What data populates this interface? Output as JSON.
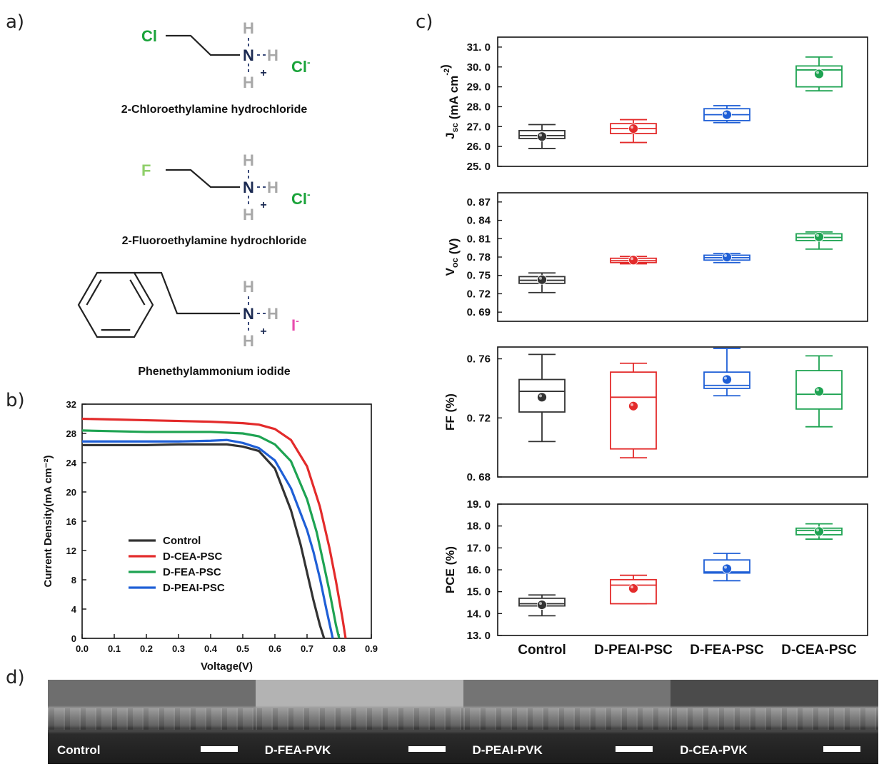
{
  "panel_labels": {
    "a": "a)",
    "b": "b)",
    "c": "c)",
    "d": "d)"
  },
  "molecules": [
    {
      "name": "2-Chloroethylamine hydrochloride",
      "substituent": "Cl",
      "counter_ion": "Cl",
      "ion_charge": "-",
      "substituent_color": "#1aa33a",
      "counter_color": "#1aa33a"
    },
    {
      "name": "2-Fluoroethylamine hydrochloride",
      "substituent": "F",
      "counter_ion": "Cl",
      "ion_charge": "-",
      "substituent_color": "#8fcf6a",
      "counter_color": "#1aa33a"
    },
    {
      "name": "Phenethylammonium iodide",
      "substituent": "",
      "counter_ion": "I",
      "ion_charge": "-",
      "substituent_color": "#222222",
      "counter_color": "#e84cae"
    }
  ],
  "atoms": {
    "N": "N",
    "H": "H",
    "plus": "+"
  },
  "colors": {
    "control": "#333333",
    "cea": "#e32b2b",
    "fea": "#1ea352",
    "peai": "#1f5fd6",
    "N": "#1b2a52",
    "H": "#a8a8a8"
  },
  "chart_data": [
    {
      "type": "line",
      "panel": "b",
      "xlabel": "Voltage(V)",
      "ylabel": "Current Density(mA cm⁻²)",
      "xlim": [
        0.0,
        0.9
      ],
      "ylim": [
        0,
        32
      ],
      "xticks": [
        "0.0",
        "0.1",
        "0.2",
        "0.3",
        "0.4",
        "0.5",
        "0.6",
        "0.7",
        "0.8",
        "0.9"
      ],
      "yticks": [
        "0",
        "4",
        "8",
        "12",
        "16",
        "20",
        "24",
        "28",
        "32"
      ],
      "legend_position": "center-left",
      "series": [
        {
          "name": "Control",
          "color": "#333333",
          "x": [
            0.0,
            0.1,
            0.2,
            0.3,
            0.4,
            0.45,
            0.5,
            0.55,
            0.6,
            0.65,
            0.68,
            0.7,
            0.72,
            0.74,
            0.753
          ],
          "y": [
            26.4,
            26.4,
            26.4,
            26.5,
            26.5,
            26.5,
            26.2,
            25.6,
            23.2,
            17.5,
            12.8,
            9.0,
            5.2,
            1.8,
            0
          ]
        },
        {
          "name": "D-CEA-PSC",
          "color": "#e32b2b",
          "x": [
            0.0,
            0.1,
            0.2,
            0.3,
            0.4,
            0.5,
            0.55,
            0.6,
            0.65,
            0.7,
            0.74,
            0.77,
            0.79,
            0.81,
            0.82
          ],
          "y": [
            30.0,
            29.9,
            29.8,
            29.7,
            29.6,
            29.4,
            29.2,
            28.6,
            27.1,
            23.5,
            18.0,
            12.3,
            7.8,
            2.8,
            0
          ]
        },
        {
          "name": "D-FEA-PSC",
          "color": "#1ea352",
          "x": [
            0.0,
            0.1,
            0.2,
            0.3,
            0.4,
            0.5,
            0.55,
            0.6,
            0.65,
            0.7,
            0.73,
            0.75,
            0.77,
            0.79,
            0.8
          ],
          "y": [
            28.4,
            28.3,
            28.2,
            28.2,
            28.2,
            28.0,
            27.6,
            26.5,
            24.2,
            19.0,
            14.5,
            10.5,
            6.4,
            1.8,
            0
          ]
        },
        {
          "name": "D-PEAI-PSC",
          "color": "#1f5fd6",
          "x": [
            0.0,
            0.1,
            0.2,
            0.3,
            0.4,
            0.45,
            0.5,
            0.55,
            0.6,
            0.65,
            0.7,
            0.72,
            0.74,
            0.76,
            0.78
          ],
          "y": [
            26.9,
            26.9,
            26.9,
            26.9,
            27.0,
            27.1,
            26.7,
            26.0,
            24.3,
            20.5,
            14.8,
            11.8,
            8.2,
            4.0,
            0
          ]
        }
      ]
    },
    {
      "type": "box",
      "panel": "c",
      "categories": [
        "Control",
        "D-PEAI-PSC",
        "D-FEA-PSC",
        "D-CEA-PSC"
      ],
      "category_colors": [
        "#333333",
        "#e32b2b",
        "#1f5fd6",
        "#1ea352"
      ],
      "subplots": [
        {
          "ylabel": "J<sub>sc</sub> (mA cm<sup>-2</sup>)",
          "ylim": [
            25.0,
            31.5
          ],
          "yticks": [
            25.0,
            26.0,
            27.0,
            28.0,
            29.0,
            30.0,
            31.0
          ],
          "tick_labels": [
            "25. 0",
            "26. 0",
            "27. 0",
            "28. 0",
            "29. 0",
            "30. 0",
            "31. 0"
          ],
          "boxes": [
            {
              "whisker_low": 25.9,
              "q1": 26.4,
              "median": 26.55,
              "q3": 26.8,
              "whisker_high": 27.1,
              "mean": 26.5
            },
            {
              "whisker_low": 26.2,
              "q1": 26.65,
              "median": 26.9,
              "q3": 27.15,
              "whisker_high": 27.35,
              "mean": 26.9
            },
            {
              "whisker_low": 27.2,
              "q1": 27.3,
              "median": 27.6,
              "q3": 27.9,
              "whisker_high": 28.05,
              "mean": 27.6
            },
            {
              "whisker_low": 28.8,
              "q1": 29.0,
              "median": 29.85,
              "q3": 30.05,
              "whisker_high": 30.5,
              "mean": 29.65
            }
          ]
        },
        {
          "ylabel": "V<sub>oc</sub> (V)",
          "ylim": [
            0.675,
            0.885
          ],
          "yticks": [
            0.69,
            0.72,
            0.75,
            0.78,
            0.81,
            0.84,
            0.87
          ],
          "tick_labels": [
            "0. 69",
            "0. 72",
            "0. 75",
            "0. 78",
            "0. 81",
            "0. 84",
            "0. 87"
          ],
          "boxes": [
            {
              "whisker_low": 0.722,
              "q1": 0.737,
              "median": 0.742,
              "q3": 0.748,
              "whisker_high": 0.754,
              "mean": 0.743
            },
            {
              "whisker_low": 0.769,
              "q1": 0.771,
              "median": 0.774,
              "q3": 0.778,
              "whisker_high": 0.781,
              "mean": 0.775
            },
            {
              "whisker_low": 0.771,
              "q1": 0.775,
              "median": 0.779,
              "q3": 0.783,
              "whisker_high": 0.786,
              "mean": 0.78
            },
            {
              "whisker_low": 0.793,
              "q1": 0.807,
              "median": 0.812,
              "q3": 0.818,
              "whisker_high": 0.821,
              "mean": 0.813
            }
          ]
        },
        {
          "ylabel": "FF (%)",
          "ylim": [
            0.68,
            0.768
          ],
          "yticks": [
            0.68,
            0.72,
            0.76
          ],
          "tick_labels": [
            "0. 68",
            "0. 72",
            "0. 76"
          ],
          "boxes": [
            {
              "whisker_low": 0.704,
              "q1": 0.724,
              "median": 0.738,
              "q3": 0.746,
              "whisker_high": 0.763,
              "mean": 0.734
            },
            {
              "whisker_low": 0.693,
              "q1": 0.699,
              "median": 0.734,
              "q3": 0.751,
              "whisker_high": 0.757,
              "mean": 0.728
            },
            {
              "whisker_low": 0.735,
              "q1": 0.74,
              "median": 0.742,
              "q3": 0.751,
              "whisker_high": 0.767,
              "mean": 0.746
            },
            {
              "whisker_low": 0.714,
              "q1": 0.726,
              "median": 0.736,
              "q3": 0.752,
              "whisker_high": 0.762,
              "mean": 0.738
            }
          ]
        },
        {
          "ylabel": "PCE (%)",
          "ylim": [
            13.0,
            19.0
          ],
          "yticks": [
            13.0,
            14.0,
            15.0,
            16.0,
            17.0,
            18.0,
            19.0
          ],
          "tick_labels": [
            "13. 0",
            "14. 0",
            "15. 0",
            "16. 0",
            "17. 0",
            "18. 0",
            "19. 0"
          ],
          "boxes": [
            {
              "whisker_low": 13.9,
              "q1": 14.35,
              "median": 14.45,
              "q3": 14.7,
              "whisker_high": 14.85,
              "mean": 14.4
            },
            {
              "whisker_low": 14.45,
              "q1": 14.45,
              "median": 15.3,
              "q3": 15.55,
              "whisker_high": 15.75,
              "mean": 15.15
            },
            {
              "whisker_low": 15.5,
              "q1": 15.85,
              "median": 15.9,
              "q3": 16.45,
              "whisker_high": 16.75,
              "mean": 16.05
            },
            {
              "whisker_low": 17.4,
              "q1": 17.6,
              "median": 17.8,
              "q3": 17.9,
              "whisker_high": 18.1,
              "mean": 17.75
            }
          ]
        }
      ]
    }
  ],
  "sem_images": [
    {
      "label": "Control",
      "surface": "#6e6e6e"
    },
    {
      "label": "D-FEA-PVK",
      "surface": "#b3b3b3"
    },
    {
      "label": "D-PEAI-PVK",
      "surface": "#747474"
    },
    {
      "label": "D-CEA-PVK",
      "surface": "#4b4b4b"
    }
  ]
}
